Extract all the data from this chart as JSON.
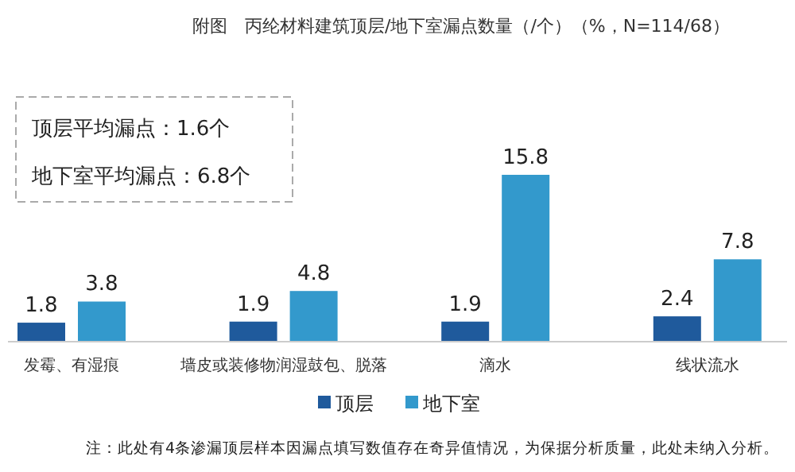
{
  "chart_data": {
    "type": "bar",
    "title": "附图　丙纶材料建筑顶层/地下室漏点数量（/个）（%，N=114/68）",
    "categories": [
      "发霉、有湿痕",
      "墙皮或装修物润湿鼓包、脱落",
      "滴水",
      "线状流水"
    ],
    "series": [
      {
        "name": "顶层",
        "color": "#1f5a9c",
        "values": [
          1.8,
          1.9,
          1.9,
          2.4
        ]
      },
      {
        "name": "地下室",
        "color": "#3399cc",
        "values": [
          3.8,
          4.8,
          15.8,
          7.8
        ]
      }
    ],
    "data_labels": true,
    "legend": "bottom",
    "annotations": [
      "顶层平均漏点：1.6个",
      "地下室平均漏点：6.8个",
      "注：此处有4条渗漏顶层样本因漏点填写数值存在奇异值情况，为保据分析质量，此处未纳入分析。"
    ]
  }
}
